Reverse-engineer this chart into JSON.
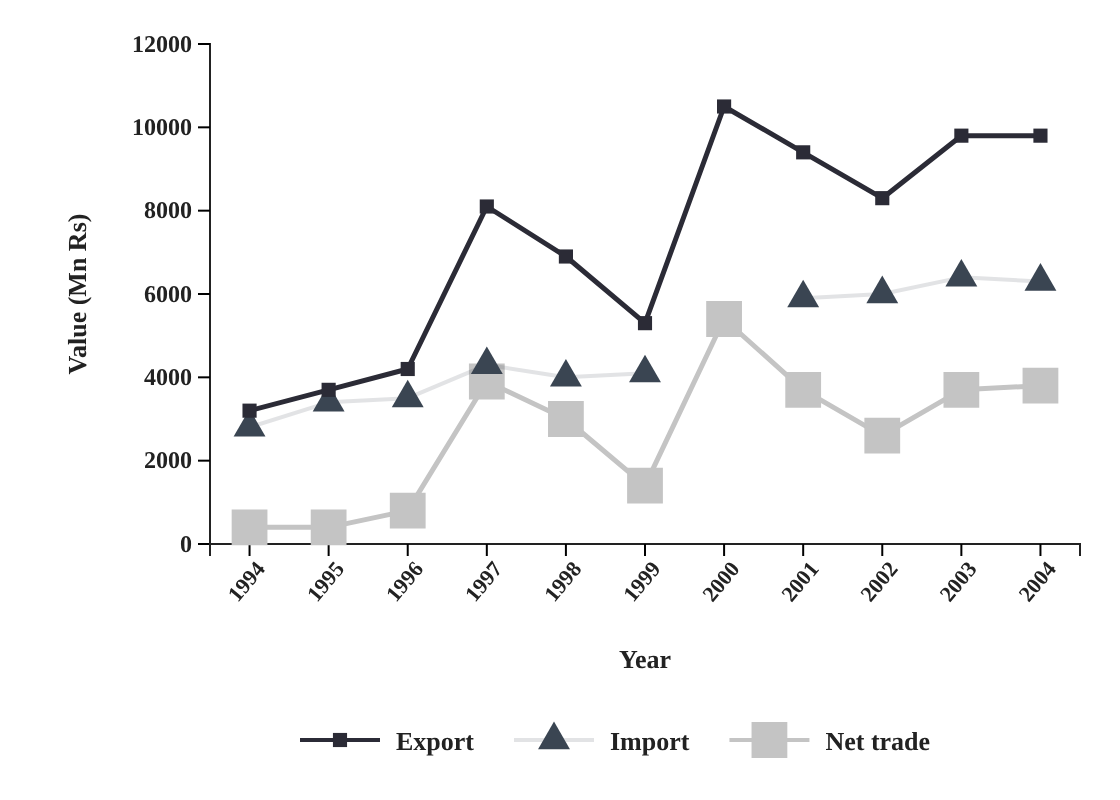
{
  "chart_data": {
    "type": "line",
    "xlabel": "Year",
    "ylabel": "Value (Mn Rs)",
    "categories": [
      "1994",
      "1995",
      "1996",
      "1997",
      "1998",
      "1999",
      "2000",
      "2001",
      "2002",
      "2003",
      "2004"
    ],
    "series": [
      {
        "name": "Export",
        "color": "#2b2b36",
        "marker": "square",
        "values": [
          3200,
          3700,
          4200,
          8100,
          6900,
          5300,
          10500,
          9400,
          8300,
          9800,
          9800
        ]
      },
      {
        "name": "Import",
        "color": "#3a4552",
        "marker": "triangle",
        "values": [
          2800,
          3400,
          3500,
          4300,
          4000,
          4100,
          null,
          5900,
          6000,
          6400,
          6300
        ]
      },
      {
        "name": "Net trade",
        "color": "#c4c4c4",
        "marker": "square",
        "values": [
          400,
          400,
          800,
          3900,
          3000,
          1400,
          5400,
          3700,
          2600,
          3700,
          3800
        ]
      }
    ],
    "ylim": [
      0,
      12000
    ],
    "yticks": [
      0,
      2000,
      4000,
      6000,
      8000,
      10000,
      12000
    ],
    "grid": false,
    "legend": "bottom"
  }
}
